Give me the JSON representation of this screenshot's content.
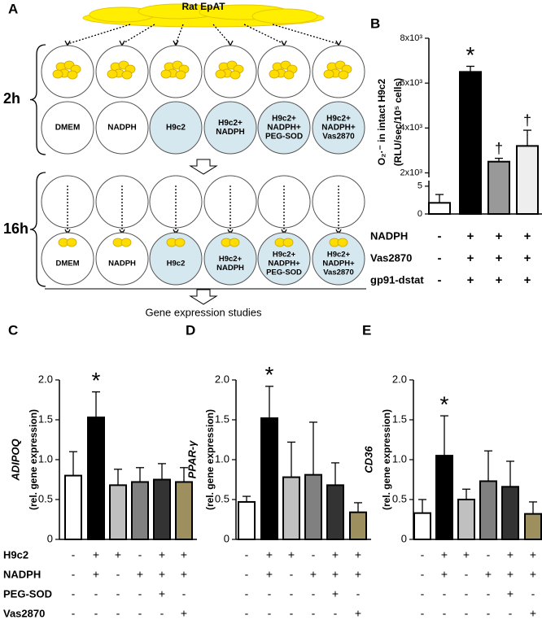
{
  "panel_a": {
    "label": "A",
    "source": "Rat EpAT",
    "time_labels": [
      "2h",
      "16h"
    ],
    "wells": [
      [
        "DMEM"
      ],
      [
        "NADPH"
      ],
      [
        "H9c2"
      ],
      [
        "H9c2+",
        "NADPH"
      ],
      [
        "H9c2+",
        "NADPH+",
        "PEG-SOD"
      ],
      [
        "H9c2+",
        "NADPH+",
        "Vas2870"
      ]
    ],
    "outcome": "Gene expression studies"
  },
  "chart_data": [
    {
      "type": "bar",
      "panel": "B",
      "y_label": [
        "O₂·⁻ in intact H9c2",
        "(RLU/sec/10⁵ cells)"
      ],
      "values": [
        2,
        6500,
        2500,
        3200
      ],
      "errors": [
        1.5,
        250,
        150,
        700
      ],
      "colors": [
        "#ffffff",
        "#000000",
        "#999999",
        "#eeeeee"
      ],
      "ylim": [
        0,
        8000
      ],
      "ybreak": [
        6,
        1800
      ],
      "yticks": [
        0,
        5,
        {
          "value": 2000,
          "label": "2x10³"
        },
        {
          "value": 4000,
          "label": "4x10³"
        },
        {
          "value": 6000,
          "label": "6x10³"
        },
        {
          "value": 8000,
          "label": "8x10³"
        }
      ],
      "annotations": [
        null,
        "*",
        "†",
        "†"
      ],
      "condition_labels": [
        "NADPH",
        "Vas2870",
        "gp91-dstat"
      ],
      "condition_signs": [
        [
          "-",
          "+",
          "+",
          "+"
        ],
        [
          "-",
          "+",
          "+",
          "+"
        ],
        [
          "-",
          "+",
          "+",
          "+"
        ]
      ]
    },
    {
      "type": "bar",
      "panel": "C",
      "y_label": "ADIPOQ",
      "y_sublabel": "(rel. gene expression)",
      "values": [
        0.8,
        1.53,
        0.68,
        0.72,
        0.75,
        0.72
      ],
      "errors": [
        0.3,
        0.32,
        0.2,
        0.18,
        0.2,
        0.18
      ],
      "colors": [
        "#ffffff",
        "#000000",
        "#c0c0c0",
        "#808080",
        "#333333",
        "#9e8f5e"
      ],
      "ylim": [
        0,
        2
      ],
      "yticks": [
        0,
        0.5,
        {
          "value": 1,
          "label": "1.0"
        },
        1.5,
        {
          "value": 2,
          "label": "2.0"
        }
      ],
      "annotations": [
        null,
        "*",
        null,
        null,
        null,
        null
      ]
    },
    {
      "type": "bar",
      "panel": "D",
      "y_label": "PPAR-γ",
      "y_sublabel": "(rel. gene expression)",
      "values": [
        0.47,
        1.52,
        0.78,
        0.81,
        0.68,
        0.34
      ],
      "errors": [
        0.07,
        0.4,
        0.44,
        0.66,
        0.28,
        0.12
      ],
      "colors": [
        "#ffffff",
        "#000000",
        "#c0c0c0",
        "#808080",
        "#333333",
        "#9e8f5e"
      ],
      "ylim": [
        0,
        2
      ],
      "yticks": [
        0,
        0.5,
        {
          "value": 1,
          "label": "1.0"
        },
        1.5,
        {
          "value": 2,
          "label": "2.0"
        }
      ],
      "annotations": [
        null,
        "*",
        null,
        null,
        null,
        null
      ]
    },
    {
      "type": "bar",
      "panel": "E",
      "y_label": "CD36",
      "y_sublabel": "(rel. gene expression)",
      "values": [
        0.33,
        1.05,
        0.5,
        0.73,
        0.66,
        0.32
      ],
      "errors": [
        0.17,
        0.5,
        0.13,
        0.38,
        0.32,
        0.15
      ],
      "colors": [
        "#ffffff",
        "#000000",
        "#c0c0c0",
        "#808080",
        "#333333",
        "#9e8f5e"
      ],
      "ylim": [
        0,
        2
      ],
      "yticks": [
        0,
        0.5,
        {
          "value": 1,
          "label": "1.0"
        },
        1.5,
        {
          "value": 2,
          "label": "2.0"
        }
      ],
      "annotations": [
        null,
        "*",
        null,
        null,
        null,
        null
      ]
    }
  ],
  "conditions": {
    "labels": [
      "H9c2",
      "NADPH",
      "PEG-SOD",
      "Vas2870"
    ],
    "signs": [
      [
        "-",
        "+",
        "+",
        "-",
        "+",
        "+"
      ],
      [
        "-",
        "+",
        "-",
        "+",
        "+",
        "+"
      ],
      [
        "-",
        "-",
        "-",
        "-",
        "+",
        "-"
      ],
      [
        "-",
        "-",
        "-",
        "-",
        "-",
        "+"
      ]
    ]
  }
}
